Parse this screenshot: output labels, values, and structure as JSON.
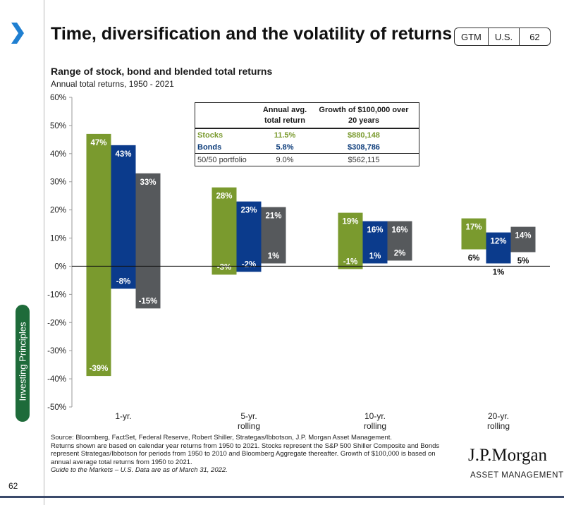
{
  "header": {
    "title": "Time, diversification and the volatility of returns",
    "badge": [
      "GTM",
      "U.S.",
      "62"
    ]
  },
  "sidebar": {
    "section_label": "Investing Principles",
    "page_number": "62"
  },
  "chart_title": "Range of stock, bond and blended total returns",
  "chart_subtitle": "Annual total returns, 1950 - 2021",
  "summary_table": {
    "headers": [
      "",
      "Annual avg.\ntotal return",
      "Growth of $100,000 over\n20 years"
    ],
    "rows": [
      {
        "name": "Stocks",
        "avg": "11.5%",
        "growth": "$880,148",
        "color": "#7a9a2e"
      },
      {
        "name": "Bonds",
        "avg": "5.8%",
        "growth": "$308,786",
        "color": "#0b3b7a"
      },
      {
        "name": "50/50 portfolio",
        "avg": "9.0%",
        "growth": "$562,115",
        "color": "#333333"
      }
    ]
  },
  "chart_data": {
    "type": "bar",
    "subtype": "floating-range",
    "title": "Range of stock, bond and blended total returns",
    "subtitle": "Annual total returns, 1950 - 2021",
    "categories": [
      "1-yr.",
      "5-yr.\nrolling",
      "10-yr.\nrolling",
      "20-yr.\nrolling"
    ],
    "ylim": [
      -50,
      60
    ],
    "yticks": [
      -50,
      -40,
      -30,
      -20,
      -10,
      0,
      10,
      20,
      30,
      40,
      50,
      60
    ],
    "ytick_labels": [
      "-50%",
      "-40%",
      "-30%",
      "-20%",
      "-10%",
      "0%",
      "10%",
      "20%",
      "30%",
      "40%",
      "50%",
      "60%"
    ],
    "series": [
      {
        "name": "Stocks",
        "color": "#7a9a2e",
        "max": [
          47,
          28,
          19,
          17
        ],
        "min": [
          -39,
          -3,
          -1,
          6
        ],
        "max_labels": [
          "47%",
          "28%",
          "19%",
          "17%"
        ],
        "min_labels": [
          "-39%",
          "-3%",
          "-1%",
          "6%"
        ]
      },
      {
        "name": "Bonds",
        "color": "#0b3b8c",
        "max": [
          43,
          23,
          16,
          12
        ],
        "min": [
          -8,
          -2,
          1,
          1
        ],
        "max_labels": [
          "43%",
          "23%",
          "16%",
          "12%"
        ],
        "min_labels": [
          "-8%",
          "-2%",
          "1%",
          "1%"
        ]
      },
      {
        "name": "50/50 portfolio",
        "color": "#56595c",
        "max": [
          33,
          21,
          16,
          14
        ],
        "min": [
          -15,
          1,
          2,
          5
        ],
        "max_labels": [
          "33%",
          "21%",
          "16%",
          "14%"
        ],
        "min_labels": [
          "-15%",
          "1%",
          "2%",
          "5%"
        ]
      }
    ]
  },
  "footnote": {
    "lines": [
      "Source: Bloomberg, FactSet, Federal Reserve, Robert Shiller, Strategas/Ibbotson, J.P. Morgan Asset Management.",
      "Returns shown are based on calendar year returns from 1950 to 2021. Stocks represent the S&P 500 Shiller Composite and Bonds represent Strategas/Ibbotson for periods from 1950 to 2010 and Bloomberg Aggregate thereafter. Growth of $100,000 is based on annual average total returns from 1950 to 2021."
    ],
    "guide": "Guide to the Markets – U.S. Data are as of March 31, 2022."
  },
  "brand": {
    "logo": "J.P.Morgan",
    "sub": "ASSET MANAGEMENT"
  },
  "colors": {
    "accent_chevron": "#1f7fd1",
    "pill": "#1e6b3a"
  }
}
